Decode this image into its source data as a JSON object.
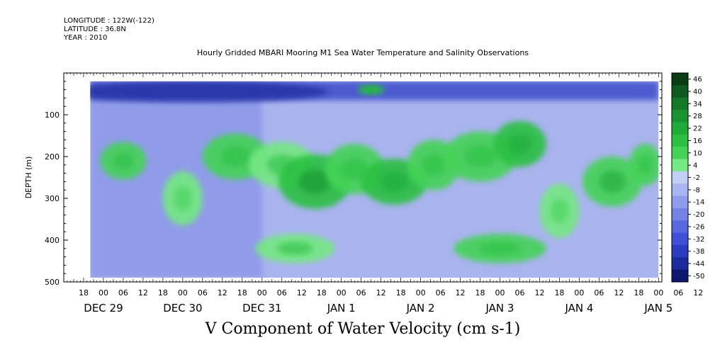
{
  "header": {
    "longitude": "LONGITUDE : 122W(-122)",
    "latitude": "LATITUDE : 36.8N",
    "year": "YEAR : 2010",
    "title": "Hourly Gridded MBARI Mooring M1 Sea Water Temperature and Salinity Observations"
  },
  "caption": "V Component of Water Velocity (cm s-1)",
  "chart_data": {
    "type": "heatmap",
    "title": "Hourly Gridded MBARI Mooring M1 Sea Water Temperature and Salinity Observations",
    "xlabel": "",
    "ylabel": "DEPTH (m)",
    "variable": "V Component of Water Velocity (cm s-1)",
    "x_unit": "hours since 2010-12-28 12:00 (axis labelled by hour of day and date)",
    "xlim": [
      0,
      181
    ],
    "y_ticks": [
      100,
      200,
      300,
      400,
      500
    ],
    "ylim": [
      500,
      0
    ],
    "y_inverted": true,
    "hour_tick_labels": [
      "18",
      "00",
      "06",
      "12",
      "18",
      "00",
      "06",
      "12",
      "18",
      "00",
      "06",
      "12",
      "18",
      "00",
      "06",
      "12",
      "18",
      "00",
      "06",
      "12",
      "18",
      "00",
      "06",
      "12",
      "18",
      "00",
      "06",
      "12",
      "18",
      "00",
      "06",
      "12"
    ],
    "date_labels": [
      "DEC 29",
      "DEC 30",
      "DEC 31",
      "JAN 1",
      "JAN 2",
      "JAN 3",
      "JAN 4",
      "JAN 5"
    ],
    "colorbar_labels": [
      "46",
      "40",
      "34",
      "28",
      "22",
      "16",
      "10",
      "4",
      "-2",
      "-8",
      "-14",
      "-20",
      "-26",
      "-32",
      "-38",
      "-44",
      "-50"
    ],
    "colorbar_colors": [
      "#0a3a14",
      "#0f5a1f",
      "#137828",
      "#18932f",
      "#1fab38",
      "#2cc043",
      "#44d356",
      "#74e882",
      "#c3d0f6",
      "#a9b6f1",
      "#8f9cec",
      "#7482e6",
      "#5868e0",
      "#3f50d6",
      "#2c3cbf",
      "#1c2a9c",
      "#0f1670"
    ],
    "data_extent": {
      "x": [
        8,
        180
      ],
      "y": [
        20,
        490
      ]
    },
    "surface_band_color": "#3545c8",
    "background_color": "#a9b3ee",
    "green_patches": [
      {
        "t": 18,
        "d": 210,
        "w": 7,
        "h": 90,
        "v": 10
      },
      {
        "t": 36,
        "d": 300,
        "w": 6,
        "h": 130,
        "v": 4
      },
      {
        "t": 52,
        "d": 200,
        "w": 10,
        "h": 110,
        "v": 8
      },
      {
        "t": 66,
        "d": 220,
        "w": 10,
        "h": 110,
        "v": 6
      },
      {
        "t": 76,
        "d": 260,
        "w": 11,
        "h": 130,
        "v": 18
      },
      {
        "t": 88,
        "d": 230,
        "w": 9,
        "h": 120,
        "v": 10
      },
      {
        "t": 100,
        "d": 260,
        "w": 10,
        "h": 110,
        "v": 16
      },
      {
        "t": 112,
        "d": 220,
        "w": 8,
        "h": 120,
        "v": 8
      },
      {
        "t": 126,
        "d": 200,
        "w": 11,
        "h": 120,
        "v": 10
      },
      {
        "t": 138,
        "d": 170,
        "w": 8,
        "h": 110,
        "v": 14
      },
      {
        "t": 150,
        "d": 330,
        "w": 6,
        "h": 130,
        "v": 4
      },
      {
        "t": 166,
        "d": 260,
        "w": 9,
        "h": 120,
        "v": 12
      },
      {
        "t": 176,
        "d": 220,
        "w": 5,
        "h": 100,
        "v": 10
      },
      {
        "t": 93,
        "d": 40,
        "w": 4,
        "h": 25,
        "v": 16
      },
      {
        "t": 70,
        "d": 420,
        "w": 12,
        "h": 70,
        "v": 6
      },
      {
        "t": 132,
        "d": 420,
        "w": 14,
        "h": 70,
        "v": 8
      }
    ]
  }
}
